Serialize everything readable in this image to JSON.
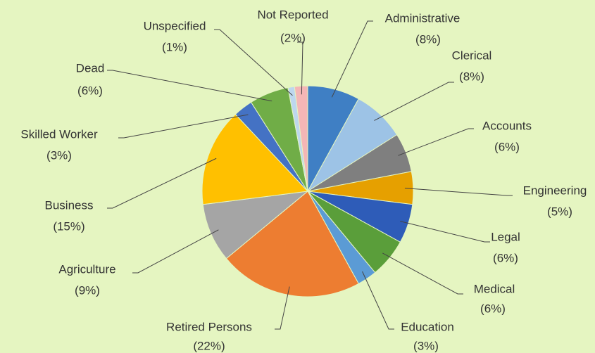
{
  "chart_data": {
    "type": "pie",
    "categories": [
      "Administrative",
      "Clerical",
      "Accounts",
      "Engineering",
      "Legal",
      "Medical",
      "Education",
      "Retired Persons",
      "Agriculture",
      "Business",
      "Skilled Worker",
      "Dead",
      "Unspecified",
      "Not Reported"
    ],
    "values": [
      8,
      8,
      6,
      5,
      6,
      6,
      3,
      22,
      9,
      15,
      3,
      6,
      1,
      2
    ],
    "value_labels": [
      "(8%)",
      "(8%)",
      "(6%)",
      "(5%)",
      "(6%)",
      "(6%)",
      "(3%)",
      "(22%)",
      "(9%)",
      "(15%)",
      "(3%)",
      "(6%)",
      "(1%)",
      "(2%)"
    ],
    "colors": [
      "#3f7fc4",
      "#9dc3e6",
      "#7f7f7f",
      "#e6a000",
      "#2e5cb8",
      "#5a9e3a",
      "#5b9bd5",
      "#ed7d31",
      "#a5a5a5",
      "#ffc000",
      "#4472c4",
      "#70ad47",
      "#bdd7ee",
      "#f4b6b6"
    ]
  }
}
